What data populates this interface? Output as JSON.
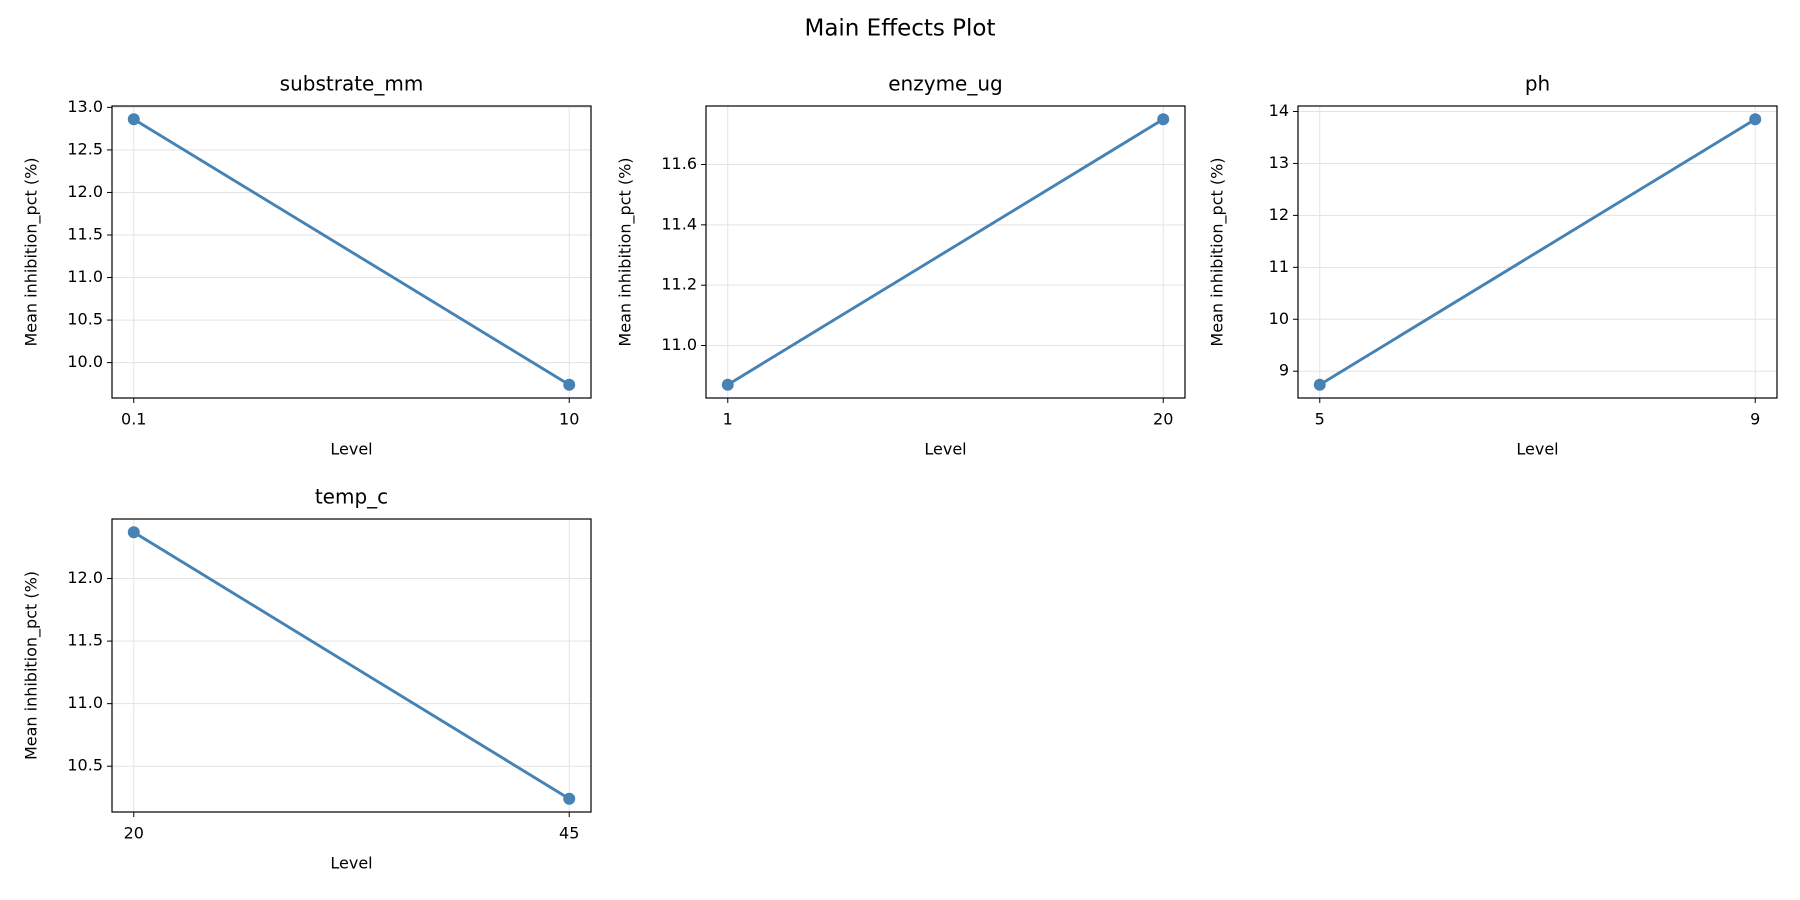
{
  "title": "Main Effects Plot",
  "chart_data": [
    {
      "type": "line",
      "title": "substrate_mm",
      "xlabel": "Level",
      "ylabel": "Mean inhibition_pct (%)",
      "categories": [
        "0.1",
        "10"
      ],
      "values": [
        12.86,
        9.74
      ],
      "color": "#4682b4",
      "ylim": [
        9.584,
        13.016
      ],
      "yticks": [
        {
          "value": 10,
          "label": "10.0"
        },
        10.5,
        {
          "value": 11,
          "label": "11.0"
        },
        11.5,
        {
          "value": 12,
          "label": "12.0"
        },
        12.5,
        {
          "value": 13,
          "label": "13.0"
        }
      ],
      "grid": true
    },
    {
      "type": "line",
      "title": "enzyme_ug",
      "xlabel": "Level",
      "ylabel": "Mean inhibition_pct (%)",
      "categories": [
        "1",
        "20"
      ],
      "values": [
        10.87,
        11.75
      ],
      "color": "#4682b4",
      "ylim": [
        10.826,
        11.794
      ],
      "yticks": [
        {
          "value": 11,
          "label": "11.0"
        },
        11.2,
        11.4,
        11.6
      ],
      "grid": true
    },
    {
      "type": "line",
      "title": "ph",
      "xlabel": "Level",
      "ylabel": "Mean inhibition_pct (%)",
      "categories": [
        "5",
        "9"
      ],
      "values": [
        8.74,
        13.85
      ],
      "color": "#4682b4",
      "ylim": [
        8.484,
        14.106
      ],
      "yticks": [
        9,
        10,
        11,
        12,
        13,
        14
      ],
      "grid": true
    },
    {
      "type": "line",
      "title": "temp_c",
      "xlabel": "Level",
      "ylabel": "Mean inhibition_pct (%)",
      "categories": [
        "20",
        "45"
      ],
      "values": [
        12.37,
        10.24
      ],
      "color": "#4682b4",
      "ylim": [
        10.134,
        12.476
      ],
      "yticks": [
        10.5,
        {
          "value": 11,
          "label": "11.0"
        },
        11.5,
        {
          "value": 12,
          "label": "12.0"
        }
      ],
      "grid": true
    }
  ]
}
